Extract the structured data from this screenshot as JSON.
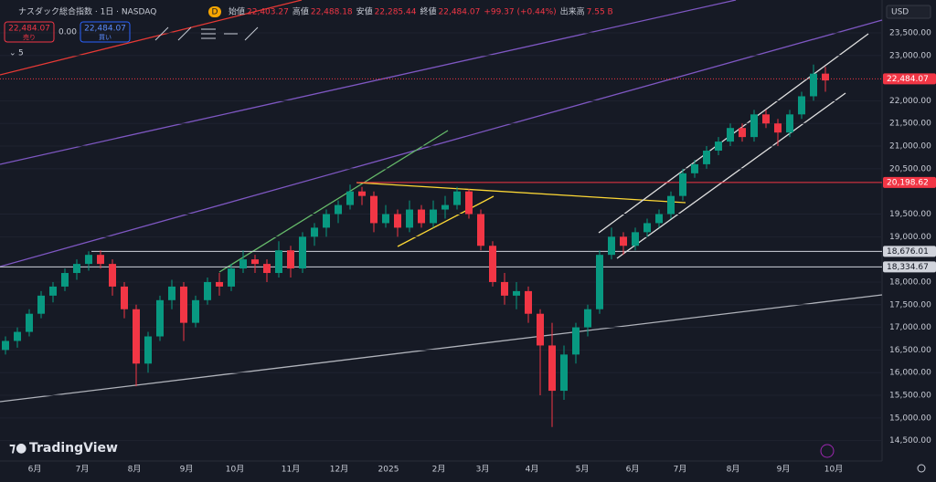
{
  "header": {
    "title": "ナスダック総合指数 · 1日 · NASDAQ",
    "interval": "D",
    "ohlc": [
      {
        "name": "始値",
        "value": 22403.27,
        "label": "22,403.27"
      },
      {
        "name": "高値",
        "value": 22488.18,
        "label": "22,488.18"
      },
      {
        "name": "安値",
        "value": 22285.44,
        "label": "22,285.44"
      },
      {
        "name": "終値",
        "value": 22484.07,
        "label": "22,484.07"
      }
    ],
    "change": "+99.37 (+0.44%)",
    "volume_name": "出来高",
    "volume": "7.55 B"
  },
  "toolbar": {
    "sell": "売り",
    "spread": "0.00",
    "buy": "買い",
    "indicators": "5",
    "currency": "USD",
    "brand": "TradingView"
  },
  "chart_data": {
    "type": "candlestick",
    "up_color": "#089981",
    "down_color": "#f23645",
    "x_labels": [
      "6月",
      "7月",
      "8月",
      "9月",
      "10月",
      "11月",
      "12月",
      "2025",
      "2月",
      "3月",
      "4月",
      "5月",
      "6月",
      "7月",
      "8月",
      "9月",
      "10月"
    ],
    "candles": [
      [
        16500,
        16800,
        16400,
        16700
      ],
      [
        16700,
        17000,
        16550,
        16900
      ],
      [
        16900,
        17400,
        16800,
        17300
      ],
      [
        17300,
        17800,
        17200,
        17700
      ],
      [
        17700,
        18000,
        17550,
        17900
      ],
      [
        17900,
        18300,
        17800,
        18200
      ],
      [
        18200,
        18500,
        18050,
        18400
      ],
      [
        18400,
        18680,
        18250,
        18600
      ],
      [
        18600,
        18700,
        18300,
        18400
      ],
      [
        18400,
        18500,
        17700,
        17900
      ],
      [
        17900,
        18000,
        17200,
        17400
      ],
      [
        17400,
        17500,
        15700,
        16200
      ],
      [
        16200,
        16900,
        16000,
        16800
      ],
      [
        16800,
        17700,
        16700,
        17600
      ],
      [
        17600,
        18050,
        17400,
        17900
      ],
      [
        17900,
        18000,
        16700,
        17100
      ],
      [
        17100,
        17700,
        17000,
        17600
      ],
      [
        17600,
        18100,
        17500,
        18000
      ],
      [
        18000,
        18200,
        17700,
        17900
      ],
      [
        17900,
        18400,
        17800,
        18300
      ],
      [
        18300,
        18700,
        18200,
        18500
      ],
      [
        18500,
        18600,
        18200,
        18400
      ],
      [
        18400,
        18500,
        18000,
        18200
      ],
      [
        18200,
        18900,
        18100,
        18700
      ],
      [
        18700,
        18800,
        18100,
        18300
      ],
      [
        18300,
        19100,
        18200,
        19000
      ],
      [
        19000,
        19300,
        18800,
        19200
      ],
      [
        19200,
        19600,
        19000,
        19500
      ],
      [
        19500,
        19800,
        19300,
        19700
      ],
      [
        19700,
        20150,
        19600,
        20000
      ],
      [
        20000,
        20100,
        19700,
        19900
      ],
      [
        19900,
        20000,
        19100,
        19300
      ],
      [
        19300,
        19700,
        19200,
        19500
      ],
      [
        19500,
        19600,
        19000,
        19200
      ],
      [
        19200,
        19800,
        19100,
        19600
      ],
      [
        19600,
        19700,
        19200,
        19300
      ],
      [
        19300,
        19800,
        19200,
        19600
      ],
      [
        19600,
        19900,
        19400,
        19700
      ],
      [
        19700,
        20100,
        19600,
        20000
      ],
      [
        20000,
        20050,
        19400,
        19500
      ],
      [
        19500,
        19600,
        18700,
        18800
      ],
      [
        18800,
        18900,
        17900,
        18000
      ],
      [
        18000,
        18200,
        17500,
        17700
      ],
      [
        17700,
        18000,
        17400,
        17800
      ],
      [
        17800,
        17900,
        17100,
        17300
      ],
      [
        17300,
        17400,
        15500,
        16600
      ],
      [
        16600,
        17100,
        14800,
        15600
      ],
      [
        15600,
        16600,
        15400,
        16400
      ],
      [
        16400,
        17100,
        16200,
        17000
      ],
      [
        17000,
        17500,
        16800,
        17400
      ],
      [
        17400,
        18700,
        17300,
        18600
      ],
      [
        18600,
        19200,
        18500,
        19000
      ],
      [
        19000,
        19100,
        18600,
        18800
      ],
      [
        18800,
        19200,
        18700,
        19100
      ],
      [
        19100,
        19400,
        19000,
        19300
      ],
      [
        19300,
        19600,
        19200,
        19500
      ],
      [
        19500,
        20000,
        19400,
        19900
      ],
      [
        19900,
        20500,
        19800,
        20400
      ],
      [
        20400,
        20700,
        20300,
        20600
      ],
      [
        20600,
        21000,
        20500,
        20900
      ],
      [
        20900,
        21200,
        20800,
        21100
      ],
      [
        21100,
        21500,
        21000,
        21400
      ],
      [
        21400,
        21500,
        21100,
        21200
      ],
      [
        21200,
        21800,
        21100,
        21700
      ],
      [
        21700,
        21800,
        21400,
        21500
      ],
      [
        21500,
        21600,
        21000,
        21300
      ],
      [
        21300,
        21800,
        21200,
        21700
      ],
      [
        21700,
        22200,
        21600,
        22100
      ],
      [
        22100,
        22800,
        22000,
        22600
      ],
      [
        22600,
        22750,
        22200,
        22450
      ]
    ],
    "ylim": [
      14050,
      24225
    ],
    "yticks": [
      {
        "value": 14500,
        "label": "14,500.00"
      },
      {
        "value": 15000,
        "label": "15,000.00"
      },
      {
        "value": 15500,
        "label": "15,500.00"
      },
      {
        "value": 16000,
        "label": "16,000.00"
      },
      {
        "value": 16500,
        "label": "16,500.00"
      },
      {
        "value": 17000,
        "label": "17,000.00"
      },
      {
        "value": 17500,
        "label": "17,500.00"
      },
      {
        "value": 18000,
        "label": "18,000.00"
      },
      {
        "value": 19000,
        "label": "19,000.00"
      },
      {
        "value": 19500,
        "label": "19,500.00"
      },
      {
        "value": 20500,
        "label": "20,500.00"
      },
      {
        "value": 21000,
        "label": "21,000.00"
      },
      {
        "value": 21500,
        "label": "21,500.00"
      },
      {
        "value": 22000,
        "label": "22,000.00"
      },
      {
        "value": 23000,
        "label": "23,000.00"
      },
      {
        "value": 23500,
        "label": "23,500.00"
      }
    ],
    "price_lines": [
      {
        "value": 20198.62,
        "label": "20,198.62",
        "color": "#f23645"
      },
      {
        "value": 18676.01,
        "label": "18,676.01",
        "color": "#d1d4dc"
      },
      {
        "value": 18334.67,
        "label": "18,334.67",
        "color": "#d1d4dc"
      }
    ]
  }
}
